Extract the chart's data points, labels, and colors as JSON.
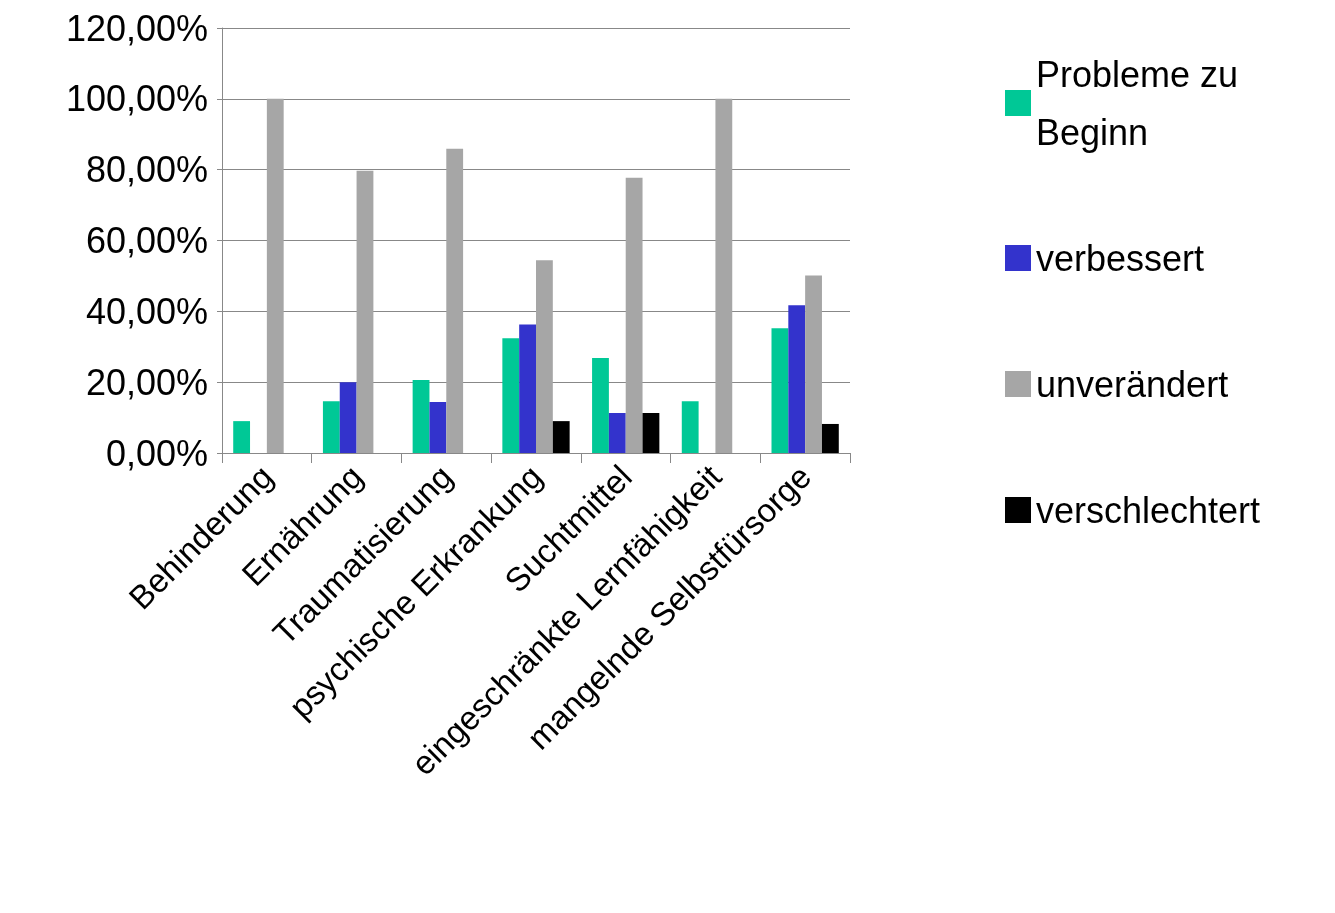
{
  "chart_data": {
    "type": "bar",
    "categories": [
      "Behinderung",
      "Ernährung",
      "Traumatisierung",
      "psychische Erkrankung",
      "Suchtmittel",
      "eingeschränkte Lernfähigkeit",
      "mangelnde Selbstfürsorge"
    ],
    "series": [
      {
        "name": "Probleme zu Beginn",
        "color": "#00c896",
        "values": [
          9,
          14.6,
          20.6,
          32.4,
          26.8,
          14.6,
          35.2
        ]
      },
      {
        "name": "verbessert",
        "color": "#3333cc",
        "values": [
          null,
          20,
          14.4,
          36.3,
          11.3,
          null,
          41.7
        ]
      },
      {
        "name": "unverändert",
        "color": "#a6a6a6",
        "values": [
          100,
          79.7,
          85.9,
          54.4,
          77.7,
          100,
          50.1
        ]
      },
      {
        "name": "verschlechtert",
        "color": "#000000",
        "values": [
          null,
          null,
          null,
          9,
          11.3,
          null,
          8.2
        ]
      }
    ],
    "ylim": [
      0,
      120
    ],
    "yticks": [
      {
        "value": 0,
        "label": "0,00%"
      },
      {
        "value": 20,
        "label": "20,00%"
      },
      {
        "value": 40,
        "label": "40,00%"
      },
      {
        "value": 60,
        "label": "60,00%"
      },
      {
        "value": 80,
        "label": "80,00%"
      },
      {
        "value": 100,
        "label": "100,00%"
      },
      {
        "value": 120,
        "label": "120,00%"
      }
    ],
    "grid": "y",
    "legend": "right"
  }
}
